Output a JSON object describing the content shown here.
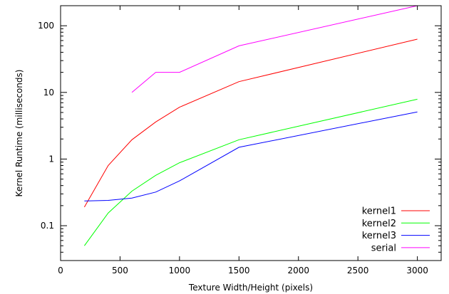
{
  "chart_data": {
    "type": "line",
    "title": "",
    "xlabel": "Texture Width/Height (pixels)",
    "ylabel": "Kernel Runtime (milliseconds)",
    "xlim": [
      0,
      3200
    ],
    "ylim": [
      0.03,
      200
    ],
    "yscale": "log",
    "grid": false,
    "legend_position": "bottom-right",
    "x_ticks": [
      0,
      500,
      1000,
      1500,
      2000,
      2500,
      3000
    ],
    "x_tick_labels": [
      "0",
      "500",
      "1000",
      "1500",
      "2000",
      "2500",
      "3000"
    ],
    "y_ticks": [
      0.1,
      1,
      10,
      100
    ],
    "y_tick_labels": [
      "0.1",
      "1",
      "10",
      "100"
    ],
    "series": [
      {
        "name": "kernel1",
        "color": "#ff0000",
        "x": [
          200,
          400,
          600,
          800,
          1000,
          1500,
          3000
        ],
        "y": [
          0.19,
          0.8,
          1.95,
          3.6,
          6.0,
          14.5,
          63
        ]
      },
      {
        "name": "kernel2",
        "color": "#00ff00",
        "x": [
          200,
          400,
          600,
          800,
          1000,
          1500,
          3000
        ],
        "y": [
          0.05,
          0.155,
          0.33,
          0.57,
          0.88,
          1.95,
          7.9
        ]
      },
      {
        "name": "kernel3",
        "color": "#0000ff",
        "x": [
          200,
          400,
          600,
          800,
          1000,
          1500,
          3000
        ],
        "y": [
          0.235,
          0.24,
          0.26,
          0.32,
          0.47,
          1.5,
          5.1
        ]
      },
      {
        "name": "serial",
        "color": "#ff00ff",
        "x": [
          600,
          800,
          1000,
          1500,
          3000
        ],
        "y": [
          10,
          20,
          20,
          50,
          200
        ]
      }
    ]
  }
}
